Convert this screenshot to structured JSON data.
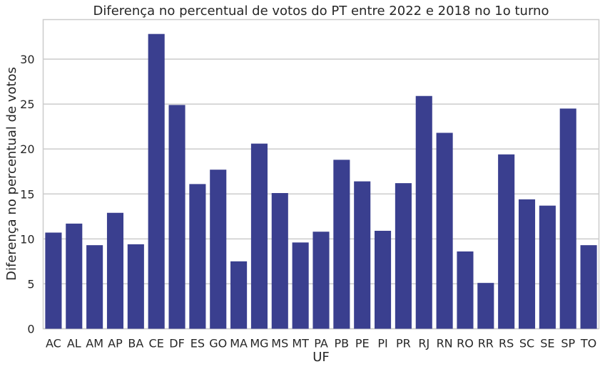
{
  "chart_data": {
    "type": "bar",
    "title": "Diferença no percentual de votos do PT entre 2022 e 2018 no 1o turno",
    "xlabel": "UF",
    "ylabel": "Diferença no percentual de votos",
    "categories": [
      "AC",
      "AL",
      "AM",
      "AP",
      "BA",
      "CE",
      "DF",
      "ES",
      "GO",
      "MA",
      "MG",
      "MS",
      "MT",
      "PA",
      "PB",
      "PE",
      "PI",
      "PR",
      "RJ",
      "RN",
      "RO",
      "RR",
      "RS",
      "SC",
      "SE",
      "SP",
      "TO"
    ],
    "values": [
      10.7,
      11.7,
      9.3,
      12.9,
      9.4,
      32.8,
      24.9,
      16.1,
      17.7,
      7.5,
      20.6,
      15.1,
      9.6,
      10.8,
      18.8,
      16.4,
      10.9,
      16.2,
      25.9,
      21.8,
      8.6,
      5.1,
      19.4,
      14.4,
      13.7,
      24.5,
      9.3
    ],
    "yticks": [
      0,
      5,
      10,
      15,
      20,
      25,
      30
    ],
    "ylim": [
      0,
      34.4
    ],
    "grid": "horizontal",
    "bar_color": "#3a3f8f",
    "grid_color": "#cccccc",
    "background": "#ffffff"
  }
}
